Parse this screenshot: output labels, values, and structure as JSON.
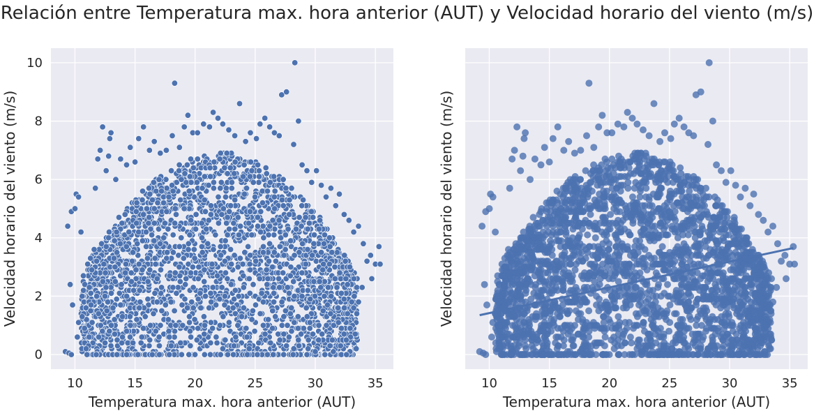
{
  "chart_data": [
    {
      "type": "scatter",
      "title": "Relación entre Temperatura max. hora anterior (AUT) y Velocidad horario del viento (m/s)",
      "xlabel": "Temperatura max. hora anterior (AUT)",
      "ylabel": "Velocidad horario del viento (m/s)",
      "xlim": [
        8.0,
        36.5
      ],
      "ylim": [
        -0.5,
        10.5
      ],
      "xticks": [
        10,
        15,
        20,
        25,
        30,
        35
      ],
      "yticks": [
        0,
        2,
        4,
        6,
        8,
        10
      ],
      "grid": true,
      "marker_color": "#4c72b0",
      "marker_edge": "#ffffff",
      "points": [
        [
          9.2,
          0.1
        ],
        [
          9.5,
          0.05
        ],
        [
          9.7,
          0.0
        ],
        [
          9.8,
          1.7
        ],
        [
          9.6,
          2.4
        ],
        [
          9.4,
          4.4
        ],
        [
          9.7,
          4.9
        ],
        [
          10.0,
          5.0
        ],
        [
          10.1,
          5.5
        ],
        [
          10.3,
          5.4
        ],
        [
          10.5,
          4.2
        ],
        [
          10.2,
          0.6
        ],
        [
          10.3,
          1.1
        ],
        [
          10.6,
          1.3
        ],
        [
          10.8,
          0.9
        ],
        [
          11.0,
          0.0
        ],
        [
          11.2,
          2.3
        ],
        [
          11.4,
          2.9
        ],
        [
          11.6,
          3.6
        ],
        [
          11.7,
          5.7
        ],
        [
          11.9,
          6.7
        ],
        [
          12.1,
          7.0
        ],
        [
          12.3,
          7.8
        ],
        [
          12.6,
          6.3
        ],
        [
          12.8,
          6.8
        ],
        [
          12.9,
          7.4
        ],
        [
          13.0,
          7.6
        ],
        [
          13.4,
          6.0
        ],
        [
          13.8,
          6.7
        ],
        [
          14.3,
          6.5
        ],
        [
          14.6,
          7.1
        ],
        [
          15.0,
          6.6
        ],
        [
          15.3,
          7.4
        ],
        [
          15.7,
          7.8
        ],
        [
          16.2,
          7.0
        ],
        [
          16.6,
          7.3
        ],
        [
          17.1,
          6.9
        ],
        [
          17.6,
          7.0
        ],
        [
          18.1,
          7.5
        ],
        [
          18.3,
          9.3
        ],
        [
          18.7,
          7.1
        ],
        [
          19.1,
          7.8
        ],
        [
          19.4,
          8.2
        ],
        [
          19.8,
          7.6
        ],
        [
          20.2,
          7.6
        ],
        [
          20.7,
          7.9
        ],
        [
          21.2,
          7.8
        ],
        [
          21.5,
          8.3
        ],
        [
          21.9,
          8.1
        ],
        [
          22.3,
          7.9
        ],
        [
          22.8,
          7.7
        ],
        [
          23.3,
          7.5
        ],
        [
          23.7,
          8.6
        ],
        [
          24.2,
          7.3
        ],
        [
          24.6,
          7.6
        ],
        [
          25.1,
          7.4
        ],
        [
          25.4,
          7.9
        ],
        [
          25.8,
          8.1
        ],
        [
          26.2,
          7.8
        ],
        [
          26.6,
          7.6
        ],
        [
          27.0,
          7.5
        ],
        [
          27.2,
          8.9
        ],
        [
          27.6,
          9.0
        ],
        [
          28.3,
          10.0
        ],
        [
          28.6,
          8.0
        ],
        [
          28.2,
          7.2
        ],
        [
          28.9,
          6.5
        ],
        [
          29.3,
          6.3
        ],
        [
          29.7,
          5.9
        ],
        [
          30.1,
          6.3
        ],
        [
          30.5,
          5.8
        ],
        [
          30.9,
          5.4
        ],
        [
          31.3,
          5.7
        ],
        [
          31.7,
          5.1
        ],
        [
          32.0,
          5.5
        ],
        [
          32.4,
          4.8
        ],
        [
          32.8,
          4.6
        ],
        [
          33.2,
          4.2
        ],
        [
          33.6,
          4.4
        ],
        [
          34.0,
          3.8
        ],
        [
          34.3,
          3.2
        ],
        [
          34.6,
          3.4
        ],
        [
          35.0,
          3.1
        ],
        [
          35.3,
          3.7
        ],
        [
          35.4,
          3.1
        ],
        [
          34.7,
          2.6
        ],
        [
          33.9,
          2.3
        ],
        [
          33.6,
          1.8
        ],
        [
          33.2,
          1.6
        ],
        [
          32.9,
          0.9
        ],
        [
          32.6,
          0.0
        ],
        [
          32.1,
          0.3
        ],
        [
          31.5,
          0.1
        ],
        [
          30.8,
          0.0
        ],
        [
          30.0,
          0.1
        ],
        [
          29.3,
          0.0
        ]
      ],
      "fit": {
        "x1": 9.2,
        "y1": 1.35,
        "x2": 35.3,
        "y2": 3.65
      }
    }
  ],
  "panels": [
    {
      "name": "scatter-plot"
    },
    {
      "name": "regression-plot"
    }
  ]
}
